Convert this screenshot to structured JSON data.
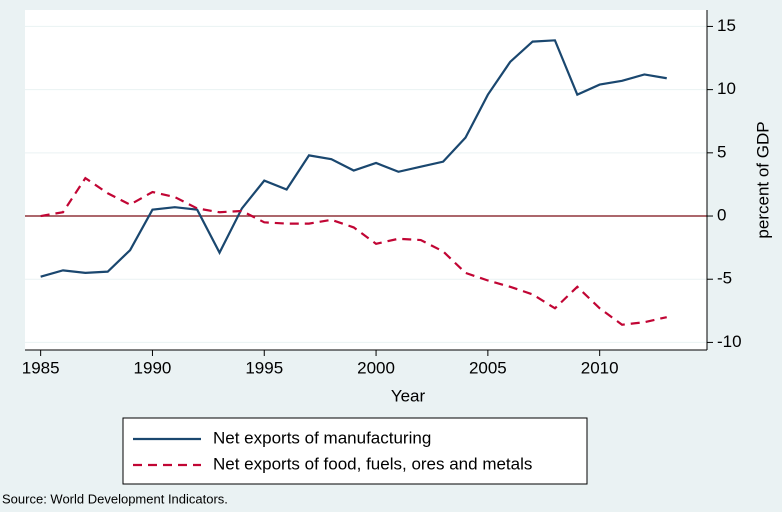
{
  "chart_data": {
    "type": "line",
    "x_label": "Year",
    "y_label": "percent of GDP",
    "source": "Source: World Development Indicators.",
    "x": [
      1985,
      1986,
      1987,
      1988,
      1989,
      1990,
      1991,
      1992,
      1993,
      1994,
      1995,
      1996,
      1997,
      1998,
      1999,
      2000,
      2001,
      2002,
      2003,
      2004,
      2005,
      2006,
      2007,
      2008,
      2009,
      2010,
      2011,
      2012,
      2013
    ],
    "series": [
      {
        "name": "Net exports of manufacturing",
        "color": "#1a476f",
        "style": "solid",
        "values": [
          -4.8,
          -4.3,
          -4.5,
          -4.4,
          -2.7,
          0.5,
          0.7,
          0.5,
          -2.9,
          0.6,
          2.8,
          2.1,
          4.8,
          4.5,
          3.6,
          4.2,
          3.5,
          3.9,
          4.3,
          6.2,
          9.6,
          12.2,
          13.8,
          13.9,
          9.6,
          10.4,
          10.7,
          11.2,
          10.9
        ]
      },
      {
        "name": "Net exports of food, fuels, ores and metals",
        "color": "#c10534",
        "style": "dashed",
        "values": [
          0.0,
          0.3,
          3.0,
          1.8,
          0.9,
          1.9,
          1.5,
          0.6,
          0.3,
          0.4,
          -0.5,
          -0.6,
          -0.6,
          -0.3,
          -0.9,
          -2.2,
          -1.8,
          -1.9,
          -2.8,
          -4.5,
          -5.1,
          -5.6,
          -6.2,
          -7.3,
          -5.6,
          -7.3,
          -8.6,
          -8.4,
          -8.0
        ]
      }
    ],
    "xlim": [
      1984.3,
      2014.8
    ],
    "xticks": [
      1985,
      1990,
      1995,
      2000,
      2005,
      2010
    ],
    "ylim": [
      -10.6,
      16.3
    ],
    "yticks": [
      -10,
      -5,
      0,
      5,
      10,
      15
    ],
    "y_axis_side": "right",
    "reference_line": 0,
    "reference_color": "#90353b",
    "grid": true
  }
}
